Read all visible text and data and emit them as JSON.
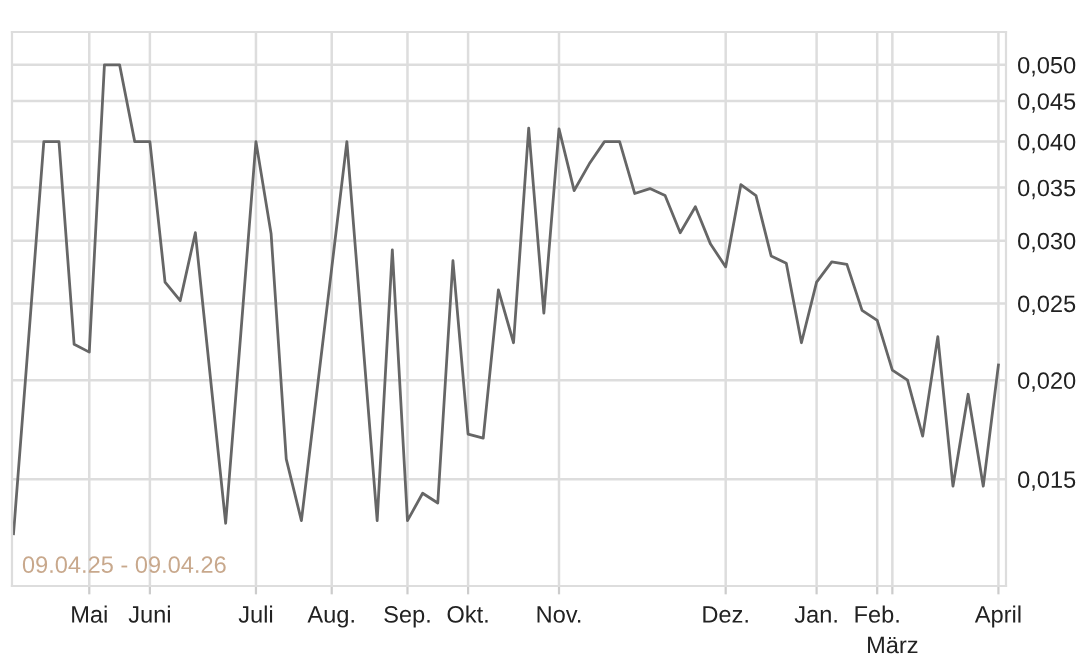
{
  "chart_data": {
    "type": "line",
    "log": "y",
    "grid": true,
    "marker": "none",
    "line_style": "solid",
    "annotations": [
      "09.04.25 - 09.04.26"
    ],
    "categories": [
      null,
      null,
      null,
      null,
      null,
      "Mai",
      null,
      null,
      null,
      "Juni",
      null,
      null,
      null,
      null,
      null,
      null,
      "Juli",
      null,
      null,
      null,
      null,
      "Aug.",
      null,
      null,
      null,
      null,
      "Sep.",
      null,
      null,
      null,
      "Okt.",
      null,
      null,
      null,
      null,
      null,
      "Nov.",
      null,
      null,
      null,
      null,
      null,
      null,
      null,
      null,
      null,
      null,
      "Dez.",
      null,
      null,
      null,
      null,
      null,
      "Jan.",
      null,
      null,
      null,
      "Feb.",
      "März",
      null,
      null,
      null,
      null,
      null,
      null,
      "April"
    ],
    "series": [
      {
        "color": "#666666",
        "values": [
          0.0128,
          0.0226,
          0.04,
          0.04,
          0.0222,
          0.0217,
          0.05,
          0.05,
          0.04,
          0.04,
          0.0266,
          0.0252,
          0.0307,
          0.0201,
          0.0132,
          0.0229,
          0.04,
          0.0306,
          0.0159,
          0.0133,
          0.0192,
          0.0277,
          0.04,
          0.0231,
          0.0133,
          0.0292,
          0.0133,
          0.0144,
          0.014,
          0.0283,
          0.0171,
          0.0169,
          0.026,
          0.0223,
          0.0416,
          0.0243,
          0.0415,
          0.0347,
          0.0375,
          0.04,
          0.04,
          0.0344,
          0.0349,
          0.0342,
          0.0307,
          0.0331,
          0.0297,
          0.0278,
          0.0353,
          0.0342,
          0.0287,
          0.0281,
          0.0223,
          0.0266,
          0.0282,
          0.028,
          0.0245,
          0.0238,
          0.0206,
          0.02,
          0.017,
          0.0227,
          0.0147,
          0.0192,
          0.0147,
          0.0209
        ]
      }
    ],
    "ylim": [
      0.011,
      0.055
    ],
    "yticks": [
      {
        "value": 0.015,
        "label": "0,015"
      },
      {
        "value": 0.02,
        "label": "0,020"
      },
      {
        "value": 0.025,
        "label": "0,025"
      },
      {
        "value": 0.03,
        "label": "0,030"
      },
      {
        "value": 0.035,
        "label": "0,035"
      },
      {
        "value": 0.04,
        "label": "0,040"
      },
      {
        "value": 0.045,
        "label": "0,045"
      },
      {
        "value": 0.05,
        "label": "0,050"
      }
    ]
  }
}
